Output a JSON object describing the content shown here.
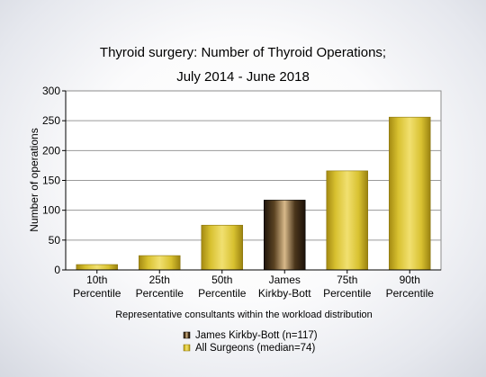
{
  "chart_data": {
    "type": "bar",
    "title": [
      "Thyroid surgery: Number of Thyroid Operations;",
      "July 2014 - June 2018"
    ],
    "xlabel": "Representative consultants within the workload distribution",
    "ylabel": "Number of operations",
    "ylim": [
      0,
      300
    ],
    "yticks": [
      0,
      50,
      100,
      150,
      200,
      250,
      300
    ],
    "grid": true,
    "categories": [
      [
        "10th",
        "Percentile"
      ],
      [
        "25th",
        "Percentile"
      ],
      [
        "50th",
        "Percentile"
      ],
      [
        "James",
        "Kirkby-Bott"
      ],
      [
        "75th",
        "Percentile"
      ],
      [
        "90th",
        "Percentile"
      ]
    ],
    "values": [
      9,
      24,
      75,
      117,
      166,
      256
    ],
    "bar_series": [
      "all",
      "all",
      "all",
      "consultant",
      "all",
      "all"
    ],
    "series": [
      {
        "key": "consultant",
        "name": "James Kirkby-Bott (n=117)",
        "color": "#2a1a0e"
      },
      {
        "key": "all",
        "name": "All Surgeons (median=74)",
        "color": "#d9c12e"
      }
    ],
    "legend_position": "bottom"
  }
}
